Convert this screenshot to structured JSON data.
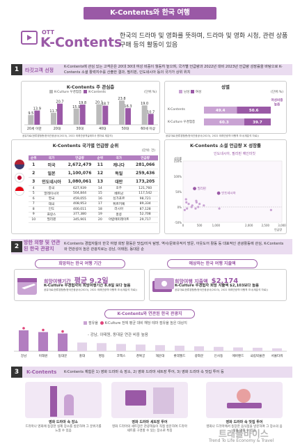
{
  "header": {
    "title": "K-Contents와 한국 여행",
    "ott": "OTT",
    "logo": "K-Contents",
    "intro": "한국의 드라마 및 영화를 뜻하며, 드라마 및 영화 시청, 관련 상품 구매 등의 활동이 있음"
  },
  "section1": {
    "num": "1",
    "label": "타깃고객 선정",
    "text": "K-Contents에 관심 있는 고객은은 20대 30대 여성 비중이 월등히 높으며, 국가별 언급량과 2022년 대비 2023년 언급량 성장률을 바탕으로 K-Contents 소셜 활력지수를 산출한 결과, 필리핀, 인도네시아 등의 국가가 상위 위치"
  },
  "interest": {
    "title": "K-Contents 주 관심층",
    "legend": [
      "K-Culture 우경험층",
      "K-Contents"
    ],
    "unit": "(단위:%)",
    "source": "공유자료(한류경험층/한국관광공사(2023), 2022 외래관광객실태조사 원자료 재분석)",
    "colors": {
      "a": "#bbbbbb",
      "b": "#9a59a6"
    }
  },
  "gender": {
    "title": "성별",
    "legend": [
      "남성",
      "여성"
    ],
    "unit": "(단위:%)",
    "note": "여성비중 높음",
    "rows": [
      {
        "label": "K-Contents",
        "male": "49.4",
        "female": "50.6"
      },
      {
        "label": "K-Culture 우경험층",
        "male": "60.3",
        "female": "39.7"
      }
    ],
    "source": "공유자료(한류경험층/한국관광공사(2023), 2022 외래관광객 어행객 조사(재분석 자료))",
    "axis": [
      "0%",
      "20%",
      "40%",
      "60%",
      "80%",
      "100%"
    ]
  },
  "ranking": {
    "title": "K-Contents 국가별 언급량 순위",
    "unit": "(단위: 건)",
    "headers": [
      "순위",
      "국가",
      "언급량",
      "순위",
      "국가",
      "언급량"
    ],
    "rows": [
      [
        "1",
        "미국",
        "2,672,479",
        "11",
        "캐나다",
        "281,066"
      ],
      [
        "2",
        "일본",
        "1,100,076",
        "12",
        "독일",
        "259,436"
      ],
      [
        "3",
        "인도네시아",
        "1,080,061",
        "13",
        "대만",
        "173,205"
      ],
      [
        "4",
        "중국",
        "627,939",
        "14",
        "호주",
        "121,760"
      ],
      [
        "5",
        "말레이시아",
        "504,844",
        "15",
        "베트남",
        "117,542"
      ],
      [
        "6",
        "영국",
        "459,055",
        "16",
        "싱가포르",
        "98,721"
      ],
      [
        "7",
        "태국",
        "408,953",
        "17",
        "튀르키예",
        "89,334"
      ],
      [
        "8",
        "인도",
        "400,011",
        "18",
        "러시아",
        "87,128"
      ],
      [
        "9",
        "프랑스",
        "377,380",
        "19",
        "홍콩",
        "52,708"
      ],
      [
        "10",
        "필리핀",
        "345,901",
        "20",
        "아랍에미레이트",
        "29,717"
      ]
    ]
  },
  "social": {
    "title": "K-Contents 소셜 언급량 X 성장률",
    "note": "인도네시아, 필리핀 예인미칫",
    "points": [
      "필리핀",
      "인도네시아"
    ],
    "yticks": [
      "성장률",
      "150%",
      "100%",
      "50%",
      "0%",
      "-50%"
    ],
    "xticks": [
      "0",
      "500",
      "1,000",
      "2,000",
      "2,500",
      "3,000"
    ],
    "xlabel": "언급량"
  },
  "section2": {
    "num": "2",
    "label": "방한 의향 및 연관된 한국 관광지",
    "text": "K-Contents 경험자들의 한국 여행 희망 활동은 맛집/미식 탐방, 역사/문화유적지 방문, 아웃도어 활동 등 대표적인 관광활동에 관심, K-Contents 와 연관성이 높은 관광지로는 강남, 이태원, 동대문 순"
  },
  "stay": {
    "title": "희망하는 한국 여행 기간",
    "headline_prefix": "희망여행기간",
    "headline_value": "평균 9.2일",
    "sub": "K-Culture 우경험자의 희망여행기간 8.8일 보다 높음",
    "source": "공유자료(한류경험층/한국관광공사(2023), 2022 외래관광객 어행객 조사(재분석 자료))"
  },
  "spend": {
    "title": "예상하는 한국 여행 지출액",
    "headline_prefix": "희망여행 지출액",
    "headline_value": "$2,174",
    "sub": "K-Culture 우경험자 희망 지출액 $2,103보다 높음",
    "source": "공유자료(한류경험층/한국관광공사(2023), 2022 외래관광객 어행객 조사(재분석 자료))"
  },
  "attractions": {
    "title": "K-Contents와 연관된 한국 관광지",
    "legend": [
      "점유율",
      "K-Culture 전체 평균 대비 해당 테마 점유율 높은 대상지"
    ],
    "note": "- 강남, 이태원, 동대문 연관 비중 높음",
    "labels": [
      "강남",
      "이태원",
      "동대문",
      "홍대",
      "명동",
      "코엑스",
      "경복궁",
      "해운대",
      "롯데월드",
      "광화문",
      "인사동",
      "에버랜드",
      "국립박물관",
      "서울타워"
    ],
    "highlight_count": 3
  },
  "section3": {
    "num": "3",
    "label": "K-Contents",
    "text": "K-Contents 체험은 1) 영화 드라마 속 장소, 2) 영화 드라마 세트장 투어, 3) 영화 드라마 속 맛집 투어 등",
    "cards": [
      {
        "title": "영화 드라마 속 장소",
        "desc": "드라마나 영화에 등장한 실제 장소를 방문하여 그 분위기를 느낄 수 있음"
      },
      {
        "title": "영화 드라마 세트장 투어",
        "desc": "영화 드라마의 세트장은 관광객들이 직접 방문하여 드라마 세트를 구경할 수 있는 장소로 특징"
      },
      {
        "title": "영화 드라마 속 맛집 투어",
        "desc": "영화나 드라마에서 등장한 음식점을 방문하여 그 장소의 음식을 맛볼 수 있음"
      }
    ]
  },
  "watermark": {
    "brand": "트래블바이스",
    "tagline": "Trend To Life Economy & Travel"
  },
  "chart_data": [
    {
      "type": "bar",
      "title": "K-Contents 주 관심층",
      "categories": [
        "20세 이만",
        "20대",
        "30대",
        "40대",
        "50대",
        "60세 이상"
      ],
      "series": [
        {
          "name": "K-Culture 우경험층",
          "values": [
            9.5,
            11.7,
            15.9,
            20.1,
            23.8,
            19.0
          ]
        },
        {
          "name": "K-Contents",
          "values": [
            13.9,
            20.7,
            19.8,
            18.7,
            16.3,
            10.7
          ]
        }
      ],
      "ylim": [
        0,
        26
      ]
    },
    {
      "type": "bar",
      "title": "성별",
      "categories": [
        "K-Contents",
        "K-Culture 우경험층"
      ],
      "series": [
        {
          "name": "남성",
          "values": [
            49.4,
            60.3
          ]
        },
        {
          "name": "여성",
          "values": [
            50.6,
            39.7
          ]
        }
      ],
      "stacked": true,
      "orientation": "horizontal"
    },
    {
      "type": "scatter",
      "title": "K-Contents 소셜 언급량 X 성장률",
      "points": [
        {
          "name": "필리핀",
          "x": 350,
          "y": 60
        },
        {
          "name": "인도네시아",
          "x": 1080,
          "y": 45
        }
      ],
      "others": [
        {
          "x": 2670,
          "y": -10
        },
        {
          "x": 1100,
          "y": -5
        },
        {
          "x": 630,
          "y": 5
        },
        {
          "x": 500,
          "y": 10
        },
        {
          "x": 460,
          "y": 0
        },
        {
          "x": 410,
          "y": 15
        },
        {
          "x": 400,
          "y": 20
        },
        {
          "x": 380,
          "y": -5
        },
        {
          "x": 280,
          "y": 5
        },
        {
          "x": 260,
          "y": 0
        },
        {
          "x": 170,
          "y": 10
        },
        {
          "x": 120,
          "y": -5
        },
        {
          "x": 100,
          "y": 15
        },
        {
          "x": 90,
          "y": 25
        },
        {
          "x": 50,
          "y": -10
        }
      ],
      "xlim": [
        0,
        3000
      ],
      "ylim": [
        -50,
        150
      ]
    },
    {
      "type": "bar",
      "title": "K-Contents와 연관된 한국 관광지",
      "categories": [
        "강남",
        "이태원",
        "동대문",
        "홍대",
        "명동",
        "코엑스",
        "경복궁",
        "해운대",
        "롯데월드",
        "광화문",
        "인사동",
        "에버랜드",
        "국립박물관",
        "서울타워"
      ],
      "values": [
        7.2,
        6.6,
        6.1,
        3.0,
        2.8,
        2.5,
        2.3,
        2.1,
        1.9,
        1.7,
        1.5,
        1.3,
        1.2,
        1.0
      ]
    }
  ]
}
